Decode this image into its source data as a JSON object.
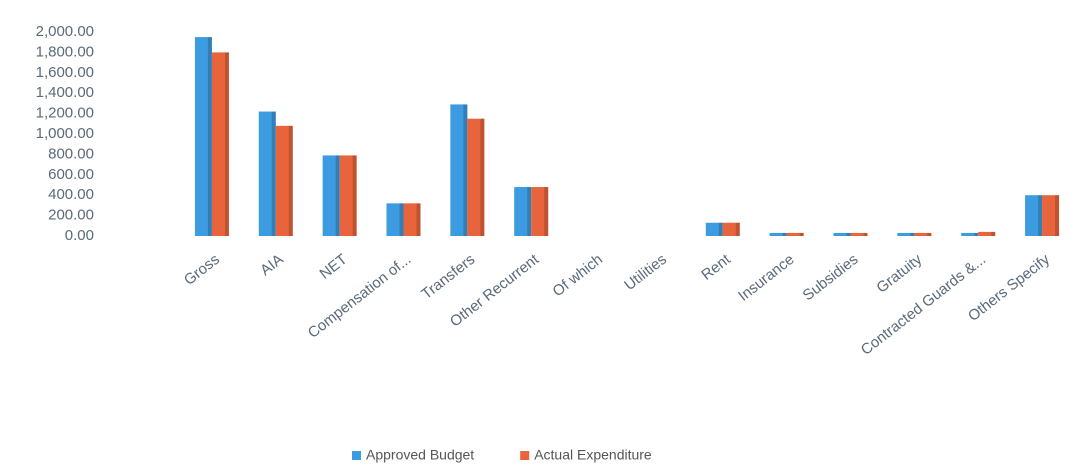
{
  "chart_data": {
    "type": "bar",
    "categories": [
      "Gross",
      "AIA",
      "NET",
      "Compensation of...",
      "Transfers",
      "Other Recurrent",
      "Of which",
      "Utilities",
      "Rent",
      "Insurance",
      "Subsidies",
      "Gratuity",
      "Contracted Guards &...",
      "Others Specify"
    ],
    "series": [
      {
        "name": "Approved Budget",
        "color": "#3d9be0",
        "values": [
          1950,
          1220,
          790,
          320,
          1290,
          480,
          0,
          0,
          130,
          30,
          30,
          30,
          30,
          400
        ]
      },
      {
        "name": "Actual Expenditure",
        "color": "#e8643c",
        "values": [
          1800,
          1080,
          790,
          320,
          1150,
          480,
          0,
          0,
          130,
          30,
          30,
          30,
          40,
          400
        ]
      }
    ],
    "ylim": [
      0,
      2000
    ],
    "yticks": [
      {
        "value": 0,
        "label": "0.00"
      },
      {
        "value": 200,
        "label": "200.00"
      },
      {
        "value": 400,
        "label": "400.00"
      },
      {
        "value": 600,
        "label": "600.00"
      },
      {
        "value": 800,
        "label": "800.00"
      },
      {
        "value": 1000,
        "label": "1,000.00"
      },
      {
        "value": 1200,
        "label": "1,200.00"
      },
      {
        "value": 1400,
        "label": "1,400.00"
      },
      {
        "value": 1600,
        "label": "1,600.00"
      },
      {
        "value": 1800,
        "label": "1,800.00"
      },
      {
        "value": 2000,
        "label": "2,000.00"
      }
    ],
    "grid": false,
    "legend": "bottom"
  }
}
